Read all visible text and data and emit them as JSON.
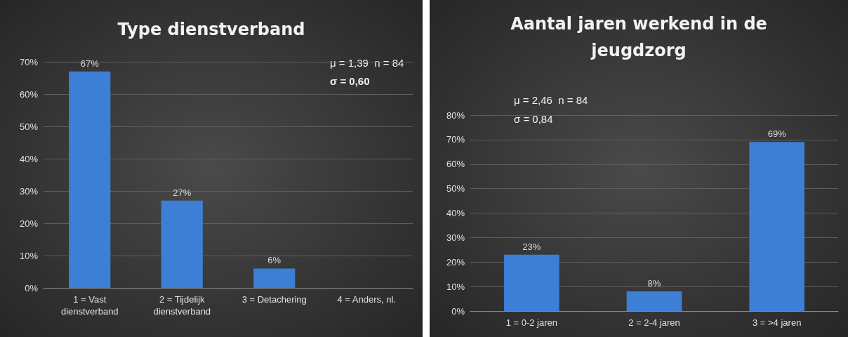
{
  "chart_data": [
    {
      "type": "bar",
      "title": "Type dienstverband",
      "categories": [
        "1 = Vast\ndienstverband",
        "2 = Tijdelijk\ndienstverband",
        "3 = Detachering",
        "4 = Anders, nl."
      ],
      "values": [
        67,
        27,
        6,
        0
      ],
      "value_labels": [
        "67%",
        "27%",
        "6%",
        null
      ],
      "color": "#3d7fd4",
      "ylim": [
        0,
        70
      ],
      "yticks": [
        {
          "value": 0,
          "label": "0%"
        },
        {
          "value": 10,
          "label": "10%"
        },
        {
          "value": 20,
          "label": "20%"
        },
        {
          "value": 30,
          "label": "30%"
        },
        {
          "value": 40,
          "label": "40%"
        },
        {
          "value": 50,
          "label": "50%"
        },
        {
          "value": 60,
          "label": "60%"
        },
        {
          "value": 70,
          "label": "70%"
        }
      ],
      "grid": "y",
      "annotations": [
        "μ = 1,39  n = 84",
        "σ = 0,60"
      ]
    },
    {
      "type": "bar",
      "title": "Aantal jaren werkend in de\njeugdzorg",
      "categories": [
        "1 = 0-2 jaren",
        "2 = 2-4 jaren",
        "3 = >4 jaren"
      ],
      "values": [
        23,
        8,
        69
      ],
      "value_labels": [
        "23%",
        "8%",
        "69%"
      ],
      "color": "#3d7fd4",
      "ylim": [
        0,
        80
      ],
      "yticks": [
        {
          "value": 0,
          "label": "0%"
        },
        {
          "value": 10,
          "label": "10%"
        },
        {
          "value": 20,
          "label": "20%"
        },
        {
          "value": 30,
          "label": "30%"
        },
        {
          "value": 40,
          "label": "40%"
        },
        {
          "value": 50,
          "label": "50%"
        },
        {
          "value": 60,
          "label": "60%"
        },
        {
          "value": 70,
          "label": "70%"
        },
        {
          "value": 80,
          "label": "80%"
        }
      ],
      "grid": "y",
      "annotations": [
        "μ = 2,46  n = 84",
        "σ = 0,84"
      ]
    }
  ]
}
